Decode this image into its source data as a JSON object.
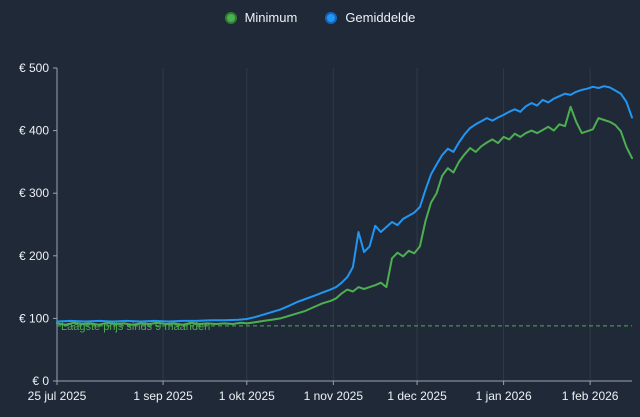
{
  "chart_data": {
    "type": "line",
    "title": "",
    "xlabel": "",
    "ylabel": "",
    "xlim": [
      0,
      206
    ],
    "ylim": [
      0,
      500
    ],
    "grid": "vertical-only",
    "legend_position": "top-center",
    "colors": {
      "background": "#202938",
      "grid": "#2f3947",
      "axis": "#9aa3b2",
      "text": "#eef1f5",
      "threshold": "#4caf50"
    },
    "x_ticks": [
      {
        "day": 0,
        "label": "25 jul 2025"
      },
      {
        "day": 38,
        "label": "1 sep 2025"
      },
      {
        "day": 68,
        "label": "1 okt 2025"
      },
      {
        "day": 99,
        "label": "1 nov 2025"
      },
      {
        "day": 129,
        "label": "1 dec 2025"
      },
      {
        "day": 160,
        "label": "1 jan 2026"
      },
      {
        "day": 191,
        "label": "1 feb 2026"
      }
    ],
    "y_ticks": [
      {
        "value": 0,
        "label": "€ 0"
      },
      {
        "value": 100,
        "label": "€ 100"
      },
      {
        "value": 200,
        "label": "€ 200"
      },
      {
        "value": 300,
        "label": "€ 300"
      },
      {
        "value": 400,
        "label": "€ 400"
      },
      {
        "value": 500,
        "label": "€ 500"
      }
    ],
    "threshold": {
      "value": 88,
      "label": "Laagste prijs sinds 9 maanden",
      "style": "dashed"
    },
    "series": [
      {
        "name": "Minimum",
        "color": "#4caf50",
        "dot_border": "#2e7d32",
        "points": [
          [
            0,
            92
          ],
          [
            3,
            90
          ],
          [
            6,
            93
          ],
          [
            9,
            91
          ],
          [
            12,
            92
          ],
          [
            15,
            90
          ],
          [
            18,
            93
          ],
          [
            21,
            91
          ],
          [
            24,
            92
          ],
          [
            27,
            90
          ],
          [
            30,
            92
          ],
          [
            33,
            91
          ],
          [
            36,
            93
          ],
          [
            39,
            91
          ],
          [
            42,
            92
          ],
          [
            45,
            90
          ],
          [
            48,
            93
          ],
          [
            51,
            91
          ],
          [
            54,
            92
          ],
          [
            57,
            91
          ],
          [
            60,
            92
          ],
          [
            63,
            91
          ],
          [
            66,
            93
          ],
          [
            68,
            92
          ],
          [
            71,
            94
          ],
          [
            74,
            96
          ],
          [
            77,
            98
          ],
          [
            80,
            100
          ],
          [
            83,
            104
          ],
          [
            86,
            108
          ],
          [
            89,
            112
          ],
          [
            92,
            118
          ],
          [
            95,
            124
          ],
          [
            98,
            128
          ],
          [
            100,
            132
          ],
          [
            102,
            140
          ],
          [
            104,
            146
          ],
          [
            106,
            143
          ],
          [
            108,
            150
          ],
          [
            110,
            147
          ],
          [
            112,
            150
          ],
          [
            114,
            153
          ],
          [
            116,
            157
          ],
          [
            118,
            150
          ],
          [
            120,
            196
          ],
          [
            122,
            205
          ],
          [
            124,
            199
          ],
          [
            126,
            208
          ],
          [
            128,
            204
          ],
          [
            130,
            215
          ],
          [
            132,
            255
          ],
          [
            134,
            285
          ],
          [
            136,
            300
          ],
          [
            138,
            328
          ],
          [
            140,
            340
          ],
          [
            142,
            333
          ],
          [
            144,
            350
          ],
          [
            146,
            362
          ],
          [
            148,
            372
          ],
          [
            150,
            366
          ],
          [
            152,
            375
          ],
          [
            154,
            381
          ],
          [
            156,
            386
          ],
          [
            158,
            380
          ],
          [
            160,
            390
          ],
          [
            162,
            386
          ],
          [
            164,
            395
          ],
          [
            166,
            390
          ],
          [
            168,
            396
          ],
          [
            170,
            400
          ],
          [
            172,
            396
          ],
          [
            174,
            401
          ],
          [
            176,
            406
          ],
          [
            178,
            400
          ],
          [
            180,
            410
          ],
          [
            182,
            407
          ],
          [
            184,
            438
          ],
          [
            186,
            414
          ],
          [
            188,
            396
          ],
          [
            190,
            399
          ],
          [
            192,
            402
          ],
          [
            194,
            420
          ],
          [
            196,
            417
          ],
          [
            198,
            414
          ],
          [
            200,
            409
          ],
          [
            202,
            399
          ],
          [
            204,
            374
          ],
          [
            206,
            356
          ]
        ]
      },
      {
        "name": "Gemiddelde",
        "color": "#2196f3",
        "dot_border": "#1565c0",
        "points": [
          [
            0,
            95
          ],
          [
            5,
            96
          ],
          [
            10,
            95
          ],
          [
            15,
            96
          ],
          [
            20,
            95
          ],
          [
            25,
            96
          ],
          [
            30,
            95
          ],
          [
            35,
            96
          ],
          [
            40,
            95
          ],
          [
            45,
            96
          ],
          [
            50,
            96
          ],
          [
            55,
            97
          ],
          [
            60,
            97
          ],
          [
            65,
            98
          ],
          [
            68,
            99
          ],
          [
            71,
            102
          ],
          [
            74,
            106
          ],
          [
            77,
            110
          ],
          [
            80,
            114
          ],
          [
            83,
            120
          ],
          [
            86,
            126
          ],
          [
            89,
            131
          ],
          [
            92,
            136
          ],
          [
            95,
            141
          ],
          [
            98,
            146
          ],
          [
            100,
            150
          ],
          [
            102,
            157
          ],
          [
            104,
            166
          ],
          [
            106,
            182
          ],
          [
            108,
            238
          ],
          [
            110,
            206
          ],
          [
            112,
            215
          ],
          [
            114,
            248
          ],
          [
            116,
            238
          ],
          [
            118,
            246
          ],
          [
            120,
            254
          ],
          [
            122,
            249
          ],
          [
            124,
            259
          ],
          [
            126,
            264
          ],
          [
            128,
            269
          ],
          [
            130,
            278
          ],
          [
            132,
            305
          ],
          [
            134,
            330
          ],
          [
            136,
            346
          ],
          [
            138,
            361
          ],
          [
            140,
            371
          ],
          [
            142,
            366
          ],
          [
            144,
            381
          ],
          [
            146,
            394
          ],
          [
            148,
            404
          ],
          [
            150,
            410
          ],
          [
            152,
            415
          ],
          [
            154,
            420
          ],
          [
            156,
            416
          ],
          [
            158,
            421
          ],
          [
            160,
            425
          ],
          [
            162,
            430
          ],
          [
            164,
            434
          ],
          [
            166,
            430
          ],
          [
            168,
            439
          ],
          [
            170,
            444
          ],
          [
            172,
            440
          ],
          [
            174,
            449
          ],
          [
            176,
            445
          ],
          [
            178,
            451
          ],
          [
            180,
            455
          ],
          [
            182,
            459
          ],
          [
            184,
            457
          ],
          [
            186,
            462
          ],
          [
            188,
            465
          ],
          [
            190,
            467
          ],
          [
            192,
            470
          ],
          [
            194,
            468
          ],
          [
            196,
            471
          ],
          [
            198,
            469
          ],
          [
            200,
            464
          ],
          [
            202,
            459
          ],
          [
            204,
            446
          ],
          [
            206,
            421
          ]
        ]
      }
    ]
  }
}
